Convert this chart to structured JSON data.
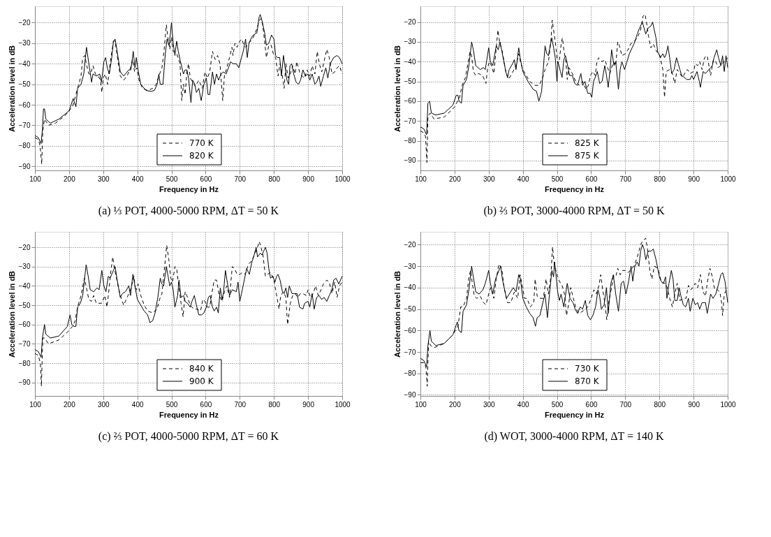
{
  "chart_data": [
    {
      "type": "line",
      "title": "(a) ⅓ POT, 4000-5000 RPM, ΔT = 50 K",
      "xlabel": "Frequency in Hz",
      "ylabel": "Acceleration level in dB",
      "xlim": [
        100,
        1000
      ],
      "xticks": [
        100,
        200,
        300,
        400,
        500,
        600,
        700,
        800,
        900,
        1000
      ],
      "ylim": [
        -92,
        -12
      ],
      "yticks": [
        -90,
        -80,
        -70,
        -60,
        -50,
        -40,
        -30,
        -20
      ],
      "grid": true,
      "legend": "bottom",
      "series": [
        {
          "name": "770 K",
          "color": "#000000",
          "line_style": "dashed",
          "x": [
            100,
            110,
            115,
            120,
            123,
            128,
            140,
            160,
            190,
            210,
            220,
            225,
            235,
            240,
            246,
            252,
            258,
            263,
            270,
            277,
            285,
            292,
            296,
            300,
            306,
            313,
            320,
            330,
            335,
            340,
            350,
            360,
            370,
            380,
            386,
            392,
            398,
            405,
            415,
            430,
            445,
            455,
            465,
            472,
            478,
            485,
            490,
            495,
            500,
            505,
            515,
            525,
            530,
            535,
            540,
            545,
            550,
            555,
            562,
            570,
            580,
            590,
            598,
            605,
            612,
            620,
            628,
            635,
            642,
            650,
            655,
            662,
            670,
            677,
            680,
            686,
            692,
            700,
            706,
            712,
            718,
            725,
            732,
            740,
            750,
            757,
            762,
            767,
            772,
            778,
            785,
            792,
            798,
            805,
            812,
            818,
            823,
            830,
            835,
            842,
            848,
            855,
            862,
            867,
            875,
            882,
            890,
            897,
            905,
            912,
            920,
            927,
            933,
            940,
            948,
            955,
            962,
            970,
            978,
            985,
            992,
            1000
          ],
          "values": [
            -76,
            -77,
            -80,
            -89,
            -73,
            -67,
            -70,
            -69,
            -65,
            -61,
            -55,
            -52,
            -46,
            -37,
            -36,
            -41,
            -45,
            -45,
            -41,
            -45,
            -46,
            -48,
            -54,
            -47,
            -45,
            -50,
            -40,
            -29,
            -29,
            -35,
            -46,
            -48,
            -46,
            -42,
            -38,
            -44,
            -42,
            -48,
            -52,
            -53,
            -52,
            -50,
            -45,
            -42,
            -34,
            -21,
            -28,
            -33,
            -27,
            -34,
            -35,
            -40,
            -58,
            -50,
            -55,
            -44,
            -40,
            -47,
            -49,
            -51,
            -48,
            -52,
            -44,
            -47,
            -44,
            -34,
            -38,
            -36,
            -40,
            -58,
            -46,
            -42,
            -37,
            -32,
            -36,
            -30,
            -32,
            -29,
            -28,
            -31,
            -32,
            -30,
            -29,
            -27,
            -23,
            -19,
            -18,
            -21,
            -28,
            -37,
            -31,
            -31,
            -35,
            -37,
            -46,
            -40,
            -44,
            -52,
            -40,
            -47,
            -45,
            -41,
            -45,
            -39,
            -44,
            -46,
            -47,
            -43,
            -46,
            -41,
            -45,
            -34,
            -40,
            -44,
            -38,
            -33,
            -37,
            -45,
            -44,
            -42,
            -41,
            -45
          ]
        },
        {
          "name": "820 K",
          "color": "#000000",
          "line_style": "solid",
          "x": [
            100,
            110,
            118,
            122,
            125,
            128,
            132,
            145,
            170,
            200,
            212,
            220,
            225,
            235,
            243,
            251,
            258,
            266,
            270,
            280,
            290,
            295,
            302,
            307,
            312,
            318,
            325,
            330,
            335,
            340,
            350,
            360,
            375,
            381,
            388,
            393,
            397,
            402,
            410,
            425,
            440,
            450,
            458,
            463,
            467,
            475,
            482,
            487,
            493,
            497,
            500,
            505,
            510,
            515,
            520,
            525,
            535,
            540,
            545,
            550,
            557,
            562,
            568,
            573,
            580,
            587,
            595,
            602,
            607,
            612,
            620,
            626,
            632,
            638,
            645,
            652,
            660,
            667,
            673,
            680,
            690,
            697,
            705,
            710,
            717,
            722,
            727,
            735,
            740,
            750,
            757,
            760,
            765,
            773,
            778,
            785,
            793,
            800,
            805,
            810,
            817,
            822,
            828,
            832,
            838,
            843,
            847,
            852,
            858,
            865,
            872,
            878,
            885,
            892,
            900,
            905,
            912,
            920,
            925,
            932,
            937,
            945,
            952,
            958,
            965,
            975,
            985,
            992,
            1000
          ],
          "values": [
            -75,
            -76,
            -79,
            -72,
            -62,
            -62,
            -67,
            -69,
            -67,
            -63,
            -57,
            -61,
            -52,
            -50,
            -45,
            -32,
            -40,
            -49,
            -45,
            -46,
            -45,
            -49,
            -39,
            -37,
            -42,
            -45,
            -37,
            -29,
            -28,
            -33,
            -44,
            -46,
            -43,
            -43,
            -34,
            -42,
            -37,
            -43,
            -50,
            -53,
            -53.5,
            -53,
            -50,
            -45,
            -50,
            -50,
            -35,
            -28,
            -31,
            -25,
            -20,
            -30,
            -36,
            -29,
            -34,
            -38,
            -45,
            -43,
            -43,
            -47,
            -59,
            -48,
            -50,
            -54,
            -52,
            -58,
            -50,
            -47,
            -55,
            -55,
            -44,
            -50,
            -45,
            -48,
            -45,
            -44,
            -45,
            -42,
            -39,
            -40,
            -40,
            -42,
            -37,
            -34,
            -28,
            -37,
            -30,
            -27,
            -26,
            -25,
            -17,
            -16,
            -19,
            -25,
            -31,
            -30,
            -26,
            -28,
            -36,
            -37,
            -37,
            -46,
            -36,
            -41,
            -48,
            -50,
            -41,
            -40,
            -45,
            -49,
            -50,
            -48,
            -43,
            -46,
            -45,
            -48,
            -45,
            -50,
            -49,
            -46,
            -51,
            -46,
            -42,
            -47,
            -40,
            -37,
            -36,
            -37,
            -40
          ]
        }
      ]
    },
    {
      "type": "line",
      "title": "(b) ⅔ POT, 3000-4000 RPM, ΔT = 50 K",
      "xlabel": "Frequency in Hz",
      "ylabel": "Acceleration level in dB",
      "xlim": [
        100,
        1000
      ],
      "xticks": [
        100,
        200,
        300,
        400,
        500,
        600,
        700,
        800,
        900,
        1000
      ],
      "ylim": [
        -95,
        -12
      ],
      "yticks": [
        -90,
        -80,
        -70,
        -60,
        -50,
        -40,
        -30,
        -20
      ],
      "grid": true,
      "legend": "bottom",
      "series": [
        {
          "name": "825 K",
          "color": "#000000",
          "line_style": "dashed",
          "x": [
            100,
            110,
            115,
            119,
            122,
            128,
            140,
            170,
            200,
            215,
            222,
            232,
            240,
            245,
            250,
            255,
            262,
            270,
            282,
            292,
            297,
            302,
            308,
            315,
            320,
            327,
            332,
            340,
            350,
            358,
            368,
            380,
            388,
            393,
            400,
            410,
            420,
            435,
            448,
            458,
            465,
            475,
            482,
            486,
            490,
            495,
            502,
            507,
            513,
            516,
            520,
            526,
            530,
            535,
            545,
            555,
            565,
            575,
            585,
            592,
            598,
            605,
            612,
            617,
            622,
            632,
            640,
            648,
            655,
            665,
            672,
            678,
            683,
            690,
            700,
            708,
            716,
            725,
            735,
            745,
            752,
            758,
            762,
            768,
            775,
            782,
            792,
            800,
            810,
            815,
            820,
            830,
            838,
            845,
            852,
            860,
            868,
            877,
            882,
            890,
            900,
            905,
            912,
            918,
            925,
            932,
            940,
            946,
            950,
            958,
            965,
            972,
            980,
            990,
            1000
          ],
          "values": [
            -75,
            -76,
            -78,
            -91,
            -68,
            -66,
            -69,
            -68,
            -63,
            -58,
            -52,
            -48,
            -40,
            -35,
            -37,
            -45,
            -47,
            -46,
            -47,
            -51,
            -43,
            -40,
            -42,
            -46,
            -37,
            -24,
            -30,
            -35,
            -45,
            -49,
            -46,
            -42,
            -36,
            -40,
            -44,
            -47,
            -50,
            -52,
            -52,
            -48,
            -44,
            -40,
            -30,
            -19,
            -24,
            -30,
            -41,
            -39,
            -30,
            -28,
            -34,
            -40,
            -49,
            -43,
            -46,
            -50,
            -52,
            -50,
            -54,
            -52,
            -47,
            -45,
            -47,
            -40,
            -38,
            -40,
            -39,
            -43,
            -46,
            -40,
            -42,
            -30,
            -32,
            -37,
            -36,
            -34,
            -31,
            -30,
            -28,
            -24,
            -17,
            -16,
            -20,
            -27,
            -33,
            -31,
            -35,
            -36,
            -44,
            -58,
            -45,
            -44,
            -46,
            -51,
            -44,
            -46,
            -48,
            -45,
            -44,
            -46,
            -45,
            -41,
            -42,
            -40,
            -44,
            -38,
            -37,
            -43,
            -47,
            -39,
            -40,
            -43,
            -42,
            -40,
            -38
          ]
        },
        {
          "name": "875 K",
          "color": "#000000",
          "line_style": "solid",
          "x": [
            100,
            110,
            118,
            122,
            127,
            132,
            145,
            170,
            195,
            205,
            210,
            213,
            220,
            225,
            235,
            242,
            250,
            255,
            262,
            275,
            285,
            290,
            300,
            305,
            312,
            318,
            322,
            328,
            333,
            340,
            350,
            355,
            360,
            370,
            375,
            380,
            388,
            392,
            400,
            415,
            430,
            440,
            447,
            455,
            465,
            470,
            475,
            480,
            485,
            490,
            495,
            500,
            503,
            510,
            515,
            520,
            525,
            530,
            537,
            545,
            552,
            560,
            565,
            570,
            575,
            582,
            590,
            597,
            602,
            607,
            612,
            618,
            625,
            632,
            640,
            645,
            650,
            655,
            660,
            667,
            672,
            680,
            685,
            690,
            698,
            705,
            712,
            720,
            728,
            735,
            742,
            750,
            755,
            760,
            767,
            775,
            780,
            790,
            795,
            803,
            810,
            815,
            820,
            825,
            830,
            836,
            843,
            850,
            860,
            865,
            873,
            880,
            890,
            895,
            900,
            910,
            917,
            920,
            928,
            935,
            945,
            955,
            960,
            968,
            973,
            980,
            985,
            990,
            995,
            1000
          ],
          "values": [
            -73,
            -74,
            -77,
            -61,
            -60,
            -66,
            -67,
            -66,
            -62,
            -57,
            -57,
            -60,
            -61,
            -52,
            -49,
            -42,
            -30,
            -34,
            -42,
            -44,
            -43,
            -44,
            -33,
            -40,
            -42,
            -36,
            -32,
            -34,
            -30,
            -36,
            -45,
            -48,
            -44,
            -41,
            -39,
            -44,
            -33,
            -38,
            -45,
            -50,
            -54,
            -55,
            -60,
            -55,
            -32,
            -36,
            -37,
            -32,
            -28,
            -33,
            -38,
            -50,
            -40,
            -45,
            -48,
            -39,
            -37,
            -41,
            -47,
            -47,
            -51,
            -52,
            -49,
            -46,
            -52,
            -50,
            -56,
            -56,
            -58,
            -50,
            -48,
            -45,
            -51,
            -50,
            -42,
            -47,
            -53,
            -45,
            -34,
            -42,
            -40,
            -54,
            -44,
            -40,
            -44,
            -40,
            -36,
            -33,
            -30,
            -26,
            -23,
            -20,
            -23,
            -26,
            -23,
            -22,
            -20,
            -28,
            -35,
            -38,
            -36,
            -38,
            -36,
            -32,
            -38,
            -46,
            -44,
            -38,
            -44,
            -47,
            -48,
            -49,
            -49,
            -47,
            -49,
            -45,
            -50,
            -53,
            -45,
            -46,
            -44,
            -42,
            -38,
            -34,
            -38,
            -42,
            -37,
            -45,
            -37,
            -43
          ]
        }
      ]
    },
    {
      "type": "line",
      "title": "(c) ⅔ POT, 4000-5000 RPM, ΔT = 60 K",
      "xlabel": "Frequency in Hz",
      "ylabel": "Acceleration level in dB",
      "xlim": [
        100,
        1000
      ],
      "xticks": [
        100,
        200,
        300,
        400,
        500,
        600,
        700,
        800,
        900,
        1000
      ],
      "ylim": [
        -97,
        -12
      ],
      "yticks": [
        -90,
        -80,
        -70,
        -60,
        -50,
        -40,
        -30,
        -20
      ],
      "grid": true,
      "legend": "bottom",
      "series": [
        {
          "name": "840 K",
          "color": "#000000",
          "line_style": "dashed",
          "x": [
            100,
            110,
            116,
            119,
            123,
            128,
            140,
            170,
            195,
            210,
            218,
            225,
            235,
            245,
            252,
            258,
            265,
            272,
            280,
            295,
            305,
            311,
            315,
            322,
            328,
            333,
            340,
            350,
            360,
            370,
            380,
            390,
            395,
            402,
            410,
            420,
            430,
            445,
            458,
            465,
            472,
            480,
            486,
            492,
            498,
            503,
            510,
            515,
            520,
            528,
            534,
            540,
            545,
            555,
            565,
            575,
            585,
            592,
            598,
            605,
            612,
            618,
            625,
            632,
            640,
            648,
            655,
            662,
            670,
            678,
            685,
            692,
            700,
            708,
            716,
            725,
            735,
            745,
            752,
            757,
            762,
            768,
            775,
            782,
            790,
            800,
            807,
            815,
            820,
            828,
            835,
            840,
            848,
            855,
            862,
            870,
            877,
            885,
            895,
            900,
            907,
            915,
            922,
            930,
            938,
            945,
            955,
            962,
            970,
            978,
            985,
            992,
            1000
          ],
          "values": [
            -75,
            -76,
            -80,
            -92,
            -67,
            -67,
            -70,
            -68,
            -64,
            -61,
            -58,
            -51,
            -45,
            -36,
            -42,
            -47,
            -48,
            -45,
            -49,
            -49,
            -45,
            -51,
            -45,
            -33,
            -25,
            -31,
            -37,
            -45,
            -50,
            -46,
            -42,
            -35,
            -43,
            -39,
            -45,
            -50,
            -53,
            -54,
            -52,
            -47,
            -44,
            -30,
            -19,
            -26,
            -36,
            -38,
            -30,
            -31,
            -38,
            -49,
            -56,
            -43,
            -45,
            -50,
            -52,
            -52,
            -53,
            -47,
            -48,
            -51,
            -51,
            -44,
            -37,
            -37,
            -45,
            -48,
            -43,
            -40,
            -46,
            -30,
            -31,
            -34,
            -34,
            -33,
            -34,
            -29,
            -27,
            -23,
            -20,
            -17,
            -20,
            -24,
            -35,
            -34,
            -33,
            -37,
            -44,
            -52,
            -45,
            -43,
            -46,
            -60,
            -49,
            -45,
            -44,
            -46,
            -44,
            -44,
            -45,
            -42,
            -46,
            -44,
            -40,
            -45,
            -42,
            -39,
            -37,
            -38,
            -44,
            -38,
            -46,
            -40,
            -38
          ]
        },
        {
          "name": "900 K",
          "color": "#000000",
          "line_style": "solid",
          "x": [
            100,
            110,
            118,
            122,
            128,
            132,
            145,
            170,
            195,
            203,
            208,
            215,
            220,
            225,
            233,
            240,
            250,
            256,
            262,
            272,
            282,
            288,
            296,
            302,
            308,
            315,
            320,
            325,
            335,
            340,
            350,
            356,
            365,
            375,
            380,
            387,
            392,
            400,
            410,
            420,
            430,
            437,
            445,
            452,
            460,
            467,
            472,
            477,
            485,
            490,
            495,
            500,
            505,
            510,
            518,
            522,
            528,
            535,
            540,
            547,
            555,
            560,
            567,
            573,
            580,
            588,
            595,
            602,
            608,
            613,
            620,
            625,
            632,
            637,
            643,
            648,
            652,
            658,
            665,
            670,
            678,
            690,
            695,
            700,
            705,
            712,
            720,
            728,
            735,
            742,
            748,
            752,
            760,
            765,
            770,
            775,
            780,
            785,
            790,
            797,
            803,
            808,
            812,
            818,
            825,
            830,
            835,
            840,
            845,
            853,
            860,
            868,
            875,
            885,
            890,
            900,
            905,
            912,
            918,
            925,
            932,
            940,
            947,
            955,
            962,
            970,
            975,
            982,
            990,
            1000
          ],
          "values": [
            -73,
            -74,
            -77,
            -67,
            -60,
            -65,
            -67,
            -66,
            -61,
            -55,
            -60,
            -61,
            -61,
            -51,
            -49,
            -45,
            -29,
            -35,
            -42,
            -43,
            -41,
            -42,
            -32,
            -40,
            -43,
            -35,
            -36,
            -34,
            -30,
            -36,
            -46,
            -44,
            -43,
            -40,
            -45,
            -34,
            -39,
            -47,
            -50,
            -53,
            -55,
            -59,
            -58,
            -54,
            -46,
            -36,
            -39,
            -40,
            -30,
            -35,
            -40,
            -38,
            -42,
            -51,
            -45,
            -37,
            -46,
            -45,
            -48,
            -49,
            -51,
            -48,
            -45,
            -50,
            -55,
            -55,
            -54,
            -51,
            -46,
            -45,
            -51,
            -53,
            -51,
            -54,
            -41,
            -47,
            -44,
            -32,
            -40,
            -45,
            -42,
            -43,
            -38,
            -48,
            -44,
            -38,
            -31,
            -34,
            -28,
            -24,
            -20,
            -25,
            -23,
            -24,
            -22,
            -20,
            -23,
            -31,
            -36,
            -35,
            -38,
            -35,
            -34,
            -37,
            -43,
            -44,
            -41,
            -46,
            -40,
            -44,
            -44,
            -44,
            -51,
            -52,
            -49,
            -48,
            -51,
            -44,
            -52,
            -46,
            -45,
            -47,
            -46,
            -48,
            -45,
            -42,
            -37,
            -36,
            -39,
            -35
          ]
        }
      ]
    },
    {
      "type": "line",
      "title": "(d) WOT, 3000-4000 RPM, ΔT = 140 K",
      "xlabel": "Frequency in Hz",
      "ylabel": "Acceleration level in dB",
      "xlim": [
        100,
        1000
      ],
      "xticks": [
        100,
        200,
        300,
        400,
        500,
        600,
        700,
        800,
        900,
        1000
      ],
      "ylim": [
        -90.5,
        -14
      ],
      "yticks": [
        -90,
        -80,
        -70,
        -60,
        -50,
        -40,
        -30,
        -20
      ],
      "grid": true,
      "legend": "bottom",
      "series": [
        {
          "name": "730 K",
          "color": "#000000",
          "line_style": "dashed",
          "x": [
            100,
            110,
            116,
            120,
            124,
            130,
            140,
            170,
            195,
            210,
            218,
            225,
            235,
            242,
            247,
            252,
            258,
            265,
            275,
            285,
            292,
            300,
            306,
            315,
            322,
            330,
            338,
            345,
            355,
            365,
            375,
            385,
            392,
            398,
            405,
            412,
            422,
            432,
            436,
            442,
            450,
            460,
            468,
            475,
            482,
            487,
            492,
            500,
            507,
            515,
            522,
            528,
            535,
            540,
            548,
            556,
            565,
            575,
            585,
            593,
            600,
            608,
            615,
            623,
            628,
            633,
            640,
            646,
            652,
            660,
            665,
            672,
            678,
            685,
            692,
            700,
            708,
            715,
            725,
            735,
            745,
            752,
            760,
            765,
            772,
            778,
            785,
            795,
            805,
            810,
            817,
            823,
            830,
            838,
            845,
            852,
            860,
            870,
            878,
            885,
            892,
            898,
            905,
            912,
            920,
            928,
            935,
            940,
            948,
            955,
            962,
            970,
            977,
            982,
            985,
            990,
            1000
          ],
          "values": [
            -75,
            -75,
            -77,
            -86,
            -65,
            -67,
            -68,
            -66,
            -62,
            -58,
            -49,
            -49,
            -45,
            -35,
            -32,
            -38,
            -44,
            -45,
            -44,
            -47,
            -48,
            -43,
            -40,
            -45,
            -36,
            -29,
            -31,
            -40,
            -47,
            -47,
            -42,
            -45,
            -34,
            -39,
            -45,
            -45,
            -49,
            -47,
            -36,
            -44,
            -45,
            -45,
            -36,
            -43,
            -35,
            -21,
            -29,
            -34,
            -37,
            -39,
            -43,
            -53,
            -47,
            -40,
            -45,
            -50,
            -52,
            -51,
            -50,
            -48,
            -45,
            -41,
            -43,
            -39,
            -34,
            -40,
            -47,
            -55,
            -46,
            -40,
            -35,
            -35,
            -31,
            -34,
            -32,
            -32,
            -33,
            -32,
            -30,
            -26,
            -20,
            -18,
            -17,
            -22,
            -32,
            -36,
            -30,
            -31,
            -37,
            -38,
            -38,
            -40,
            -45,
            -49,
            -43,
            -38,
            -46,
            -45,
            -45,
            -39,
            -41,
            -40,
            -38,
            -40,
            -34,
            -42,
            -44,
            -38,
            -31,
            -35,
            -41,
            -41,
            -42,
            -47,
            -53,
            -43,
            -40
          ]
        },
        {
          "name": "870 K",
          "color": "#000000",
          "line_style": "solid",
          "x": [
            100,
            110,
            118,
            122,
            128,
            132,
            145,
            170,
            195,
            208,
            213,
            220,
            225,
            235,
            242,
            250,
            255,
            262,
            272,
            283,
            290,
            300,
            305,
            312,
            320,
            325,
            335,
            340,
            352,
            360,
            372,
            380,
            388,
            393,
            400,
            410,
            420,
            430,
            437,
            442,
            450,
            460,
            465,
            472,
            478,
            485,
            490,
            493,
            497,
            502,
            507,
            512,
            520,
            530,
            538,
            547,
            553,
            560,
            568,
            575,
            583,
            590,
            598,
            605,
            613,
            620,
            625,
            630,
            638,
            645,
            650,
            658,
            665,
            672,
            680,
            688,
            695,
            702,
            710,
            717,
            722,
            728,
            735,
            740,
            745,
            750,
            755,
            760,
            767,
            775,
            782,
            790,
            800,
            805,
            812,
            818,
            822,
            828,
            835,
            840,
            845,
            852,
            858,
            863,
            870,
            877,
            885,
            890,
            898,
            905,
            912,
            918,
            925,
            935,
            940,
            950,
            957,
            965,
            972,
            980,
            985,
            992,
            1000
          ],
          "values": [
            -73,
            -74,
            -77,
            -67,
            -60,
            -65,
            -67,
            -66,
            -62,
            -56,
            -60,
            -61,
            -51,
            -48,
            -41,
            -30,
            -35,
            -42,
            -43,
            -41,
            -38,
            -32,
            -38,
            -43,
            -36,
            -34,
            -30,
            -36,
            -45,
            -43,
            -40,
            -42,
            -34,
            -36,
            -45,
            -49,
            -52,
            -54,
            -58,
            -54,
            -53,
            -46,
            -43,
            -54,
            -43,
            -32,
            -35,
            -28,
            -34,
            -42,
            -46,
            -43,
            -49,
            -38,
            -45,
            -47,
            -50,
            -52,
            -49,
            -50,
            -46,
            -53,
            -55,
            -53,
            -49,
            -41,
            -44,
            -50,
            -48,
            -40,
            -52,
            -38,
            -34,
            -43,
            -51,
            -38,
            -37,
            -43,
            -37,
            -30,
            -37,
            -30,
            -28,
            -30,
            -23,
            -20,
            -22,
            -27,
            -23,
            -23,
            -22,
            -27,
            -35,
            -37,
            -38,
            -35,
            -45,
            -38,
            -32,
            -36,
            -46,
            -46,
            -40,
            -44,
            -48,
            -49,
            -45,
            -51,
            -45,
            -48,
            -47,
            -50,
            -47,
            -47,
            -52,
            -43,
            -45,
            -43,
            -39,
            -34,
            -33,
            -37,
            -47
          ]
        }
      ]
    }
  ]
}
